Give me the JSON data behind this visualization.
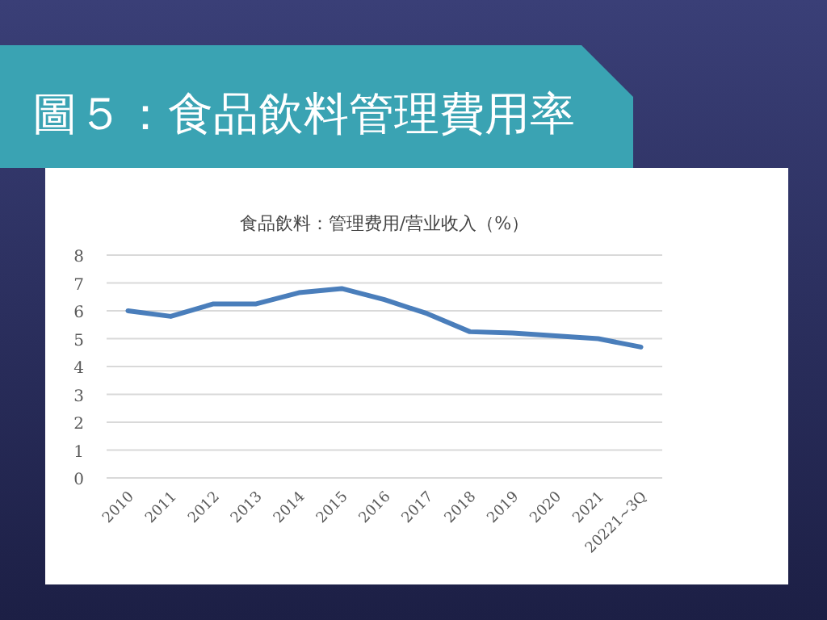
{
  "chart_data": {
    "type": "line",
    "title": "圖５：食品飲料管理費用率",
    "subtitle": "食品飲料：管理费用/营业收入（%）",
    "categories": [
      "2010",
      "2011",
      "2012",
      "2013",
      "2014",
      "2015",
      "2016",
      "2017",
      "2018",
      "2019",
      "2020",
      "2021",
      "20221~3Q"
    ],
    "series": [
      {
        "color": "#4a7ebb",
        "values": [
          6.0,
          5.8,
          6.25,
          6.25,
          6.65,
          6.8,
          6.4,
          5.9,
          5.25,
          5.2,
          5.1,
          5.0,
          4.7
        ]
      }
    ],
    "ylim": [
      0,
      8
    ],
    "yticks": [
      0,
      1,
      2,
      3,
      4,
      5,
      6,
      7,
      8
    ],
    "grid": "y",
    "marker": "none",
    "line_style": "solid"
  }
}
